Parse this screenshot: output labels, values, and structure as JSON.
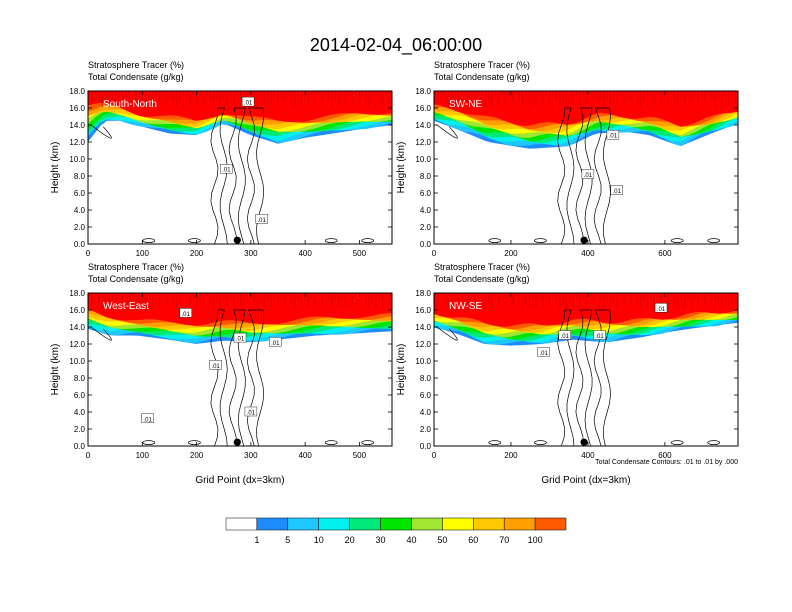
{
  "title": "2014-02-04_06:00:00",
  "colors": {
    "levels": [
      "#ffffff",
      "#1e8cff",
      "#1ec8ff",
      "#00f0f0",
      "#00e878",
      "#00e600",
      "#a0e632",
      "#ffff00",
      "#ffc800",
      "#ffa000",
      "#ff5a00",
      "#ff0000"
    ],
    "contour": "#000000"
  },
  "colorbar": {
    "labels": [
      "1",
      "5",
      "10",
      "20",
      "30",
      "40",
      "50",
      "60",
      "70",
      "100"
    ]
  },
  "footnote": "Total Condensate Contours: .01 to .01 by .000",
  "chart_data": [
    {
      "type": "heatmap",
      "subtitle1": "Stratosphere Tracer   (%)",
      "subtitle2": "Total Condensate   (g/kg)",
      "panel_label": "South-North",
      "xlabel": "",
      "ylabel": "Height (km)",
      "xlim": [
        0,
        560
      ],
      "ylim": [
        0,
        18
      ],
      "xticks": [
        0,
        100,
        200,
        300,
        400,
        500
      ],
      "yticks": [
        "0.0",
        "2.0",
        "4.0",
        "6.0",
        "8.0",
        "10.0",
        "12.0",
        "14.0",
        "16.0",
        "18.0"
      ],
      "marker_x": 275,
      "contour_labels": [
        {
          "text": ".01",
          "x": 295,
          "y": 16.7
        },
        {
          "text": ".01",
          "x": 255,
          "y": 8.8
        },
        {
          "text": ".01",
          "x": 320,
          "y": 2.9
        }
      ],
      "profile": [
        [
          0,
          16.2,
          12.0
        ],
        [
          30,
          16.4,
          14.5
        ],
        [
          60,
          16.0,
          14.5
        ],
        [
          100,
          15.2,
          13.8
        ],
        [
          150,
          15.0,
          13.0
        ],
        [
          200,
          14.4,
          12.8
        ],
        [
          250,
          15.5,
          14.2
        ],
        [
          300,
          14.8,
          12.8
        ],
        [
          350,
          14.5,
          11.8
        ],
        [
          400,
          14.6,
          12.5
        ],
        [
          450,
          15.0,
          13.0
        ],
        [
          500,
          15.4,
          13.5
        ],
        [
          560,
          15.5,
          14.0
        ]
      ]
    },
    {
      "type": "heatmap",
      "subtitle1": "Stratosphere Tracer   (%)",
      "subtitle2": "Total Condensate   (g/kg)",
      "panel_label": "SW-NE",
      "xlabel": "",
      "ylabel": "Height (km)",
      "xlim": [
        0,
        790
      ],
      "ylim": [
        0,
        18
      ],
      "xticks": [
        0,
        200,
        400,
        600
      ],
      "yticks": [
        "0.0",
        "2.0",
        "4.0",
        "6.0",
        "8.0",
        "10.0",
        "12.0",
        "14.0",
        "16.0",
        "18.0"
      ],
      "marker_x": 390,
      "contour_labels": [
        {
          "text": ".01",
          "x": 465,
          "y": 12.8
        },
        {
          "text": ".01",
          "x": 400,
          "y": 8.2
        },
        {
          "text": ".01",
          "x": 475,
          "y": 6.3
        }
      ],
      "profile": [
        [
          0,
          16.2,
          14.5
        ],
        [
          60,
          15.8,
          13.5
        ],
        [
          140,
          14.8,
          12.0
        ],
        [
          250,
          14.0,
          11.2
        ],
        [
          350,
          14.2,
          11.5
        ],
        [
          420,
          15.2,
          13.0
        ],
        [
          500,
          15.0,
          13.2
        ],
        [
          560,
          14.8,
          12.8
        ],
        [
          640,
          14.0,
          11.5
        ],
        [
          720,
          14.8,
          13.0
        ],
        [
          790,
          15.8,
          14.2
        ]
      ]
    },
    {
      "type": "heatmap",
      "subtitle1": "Stratosphere Tracer   (%)",
      "subtitle2": "Total Condensate   (g/kg)",
      "panel_label": "West-East",
      "xlabel": "Grid Point (dx=3km)",
      "ylabel": "Height (km)",
      "xlim": [
        0,
        560
      ],
      "ylim": [
        0,
        18
      ],
      "xticks": [
        0,
        100,
        200,
        300,
        400,
        500
      ],
      "yticks": [
        "0.0",
        "2.0",
        "4.0",
        "6.0",
        "8.0",
        "10.0",
        "12.0",
        "14.0",
        "16.0",
        "18.0"
      ],
      "marker_x": 275,
      "contour_labels": [
        {
          "text": ".01",
          "x": 180,
          "y": 15.6
        },
        {
          "text": ".01",
          "x": 280,
          "y": 12.7
        },
        {
          "text": ".01",
          "x": 345,
          "y": 12.2
        },
        {
          "text": ".01",
          "x": 235,
          "y": 9.5
        },
        {
          "text": ".01",
          "x": 300,
          "y": 4.0
        },
        {
          "text": ".01",
          "x": 110,
          "y": 3.2
        }
      ],
      "profile": [
        [
          0,
          16.0,
          13.8
        ],
        [
          40,
          15.2,
          13.0
        ],
        [
          90,
          14.8,
          13.0
        ],
        [
          150,
          14.5,
          12.5
        ],
        [
          200,
          14.4,
          12.0
        ],
        [
          250,
          14.6,
          12.4
        ],
        [
          300,
          14.4,
          12.2
        ],
        [
          350,
          14.6,
          12.5
        ],
        [
          420,
          15.0,
          13.0
        ],
        [
          480,
          15.2,
          13.2
        ],
        [
          560,
          15.4,
          13.5
        ]
      ]
    },
    {
      "type": "heatmap",
      "subtitle1": "Stratosphere Tracer   (%)",
      "subtitle2": "Total Condensate   (g/kg)",
      "panel_label": "NW-SE",
      "xlabel": "Grid Point (dx=3km)",
      "ylabel": "Height (km)",
      "xlim": [
        0,
        790
      ],
      "ylim": [
        0,
        18
      ],
      "xticks": [
        0,
        200,
        400,
        600
      ],
      "yticks": [
        "0.0",
        "2.0",
        "4.0",
        "6.0",
        "8.0",
        "10.0",
        "12.0",
        "14.0",
        "16.0",
        "18.0"
      ],
      "marker_x": 390,
      "contour_labels": [
        {
          "text": ".01",
          "x": 590,
          "y": 16.2
        },
        {
          "text": ".01",
          "x": 340,
          "y": 13.0
        },
        {
          "text": ".01",
          "x": 430,
          "y": 13.0
        },
        {
          "text": ".01",
          "x": 285,
          "y": 11.0
        }
      ],
      "profile": [
        [
          0,
          15.6,
          14.0
        ],
        [
          60,
          15.2,
          13.2
        ],
        [
          130,
          14.4,
          12.0
        ],
        [
          200,
          14.2,
          11.8
        ],
        [
          280,
          14.2,
          12.0
        ],
        [
          360,
          14.8,
          12.5
        ],
        [
          450,
          14.6,
          12.2
        ],
        [
          540,
          14.8,
          12.8
        ],
        [
          620,
          15.2,
          13.5
        ],
        [
          700,
          15.6,
          14.0
        ],
        [
          790,
          16.0,
          14.5
        ]
      ]
    }
  ]
}
